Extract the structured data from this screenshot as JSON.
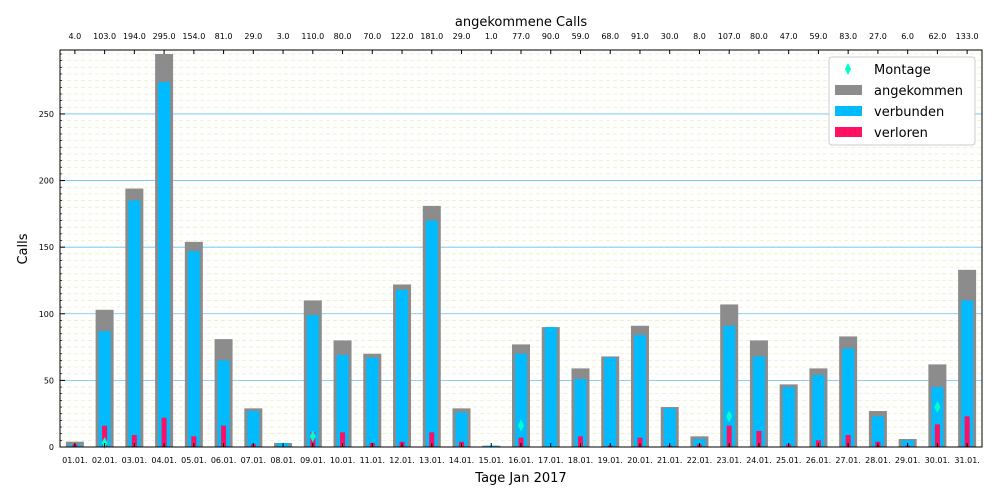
{
  "chart_data": {
    "type": "bar",
    "title": "angekommene Calls",
    "xlabel": "Tage Jan 2017",
    "ylabel": "Calls",
    "ylim": [
      0,
      298
    ],
    "yticks": [
      0,
      50,
      100,
      150,
      200,
      250
    ],
    "grid": true,
    "legend_position": "top-right",
    "categories": [
      "01.01.",
      "02.01.",
      "03.01.",
      "04.01.",
      "05.01.",
      "06.01.",
      "07.01.",
      "08.01.",
      "09.01.",
      "10.01.",
      "11.01.",
      "12.01.",
      "13.01.",
      "14.01.",
      "15.01.",
      "16.01.",
      "17.01.",
      "18.01.",
      "19.01.",
      "20.01.",
      "21.01.",
      "22.01.",
      "23.01.",
      "24.01.",
      "25.01.",
      "26.01.",
      "27.01.",
      "28.01.",
      "29.01.",
      "30.01.",
      "31.01."
    ],
    "top_labels": [
      "4.0",
      "103.0",
      "194.0",
      "295.0",
      "154.0",
      "81.0",
      "29.0",
      "3.0",
      "110.0",
      "80.0",
      "70.0",
      "122.0",
      "181.0",
      "29.0",
      "1.0",
      "77.0",
      "90.0",
      "59.0",
      "68.0",
      "91.0",
      "30.0",
      "8.0",
      "107.0",
      "80.0",
      "47.0",
      "59.0",
      "83.0",
      "27.0",
      "6.0",
      "62.0",
      "133.0"
    ],
    "series": [
      {
        "name": "Montage",
        "kind": "marker",
        "color": "#00ffcc",
        "points": [
          {
            "index": 1,
            "value": 3
          },
          {
            "index": 8,
            "value": 8
          },
          {
            "index": 15,
            "value": 16
          },
          {
            "index": 22,
            "value": 23
          },
          {
            "index": 29,
            "value": 30
          }
        ]
      },
      {
        "name": "angekommen",
        "kind": "bar",
        "color": "#8c8c8c",
        "values": [
          4,
          103,
          194,
          295,
          154,
          81,
          29,
          3,
          110,
          80,
          70,
          122,
          181,
          29,
          1,
          77,
          90,
          59,
          68,
          91,
          30,
          8,
          107,
          80,
          47,
          59,
          83,
          27,
          6,
          62,
          133
        ]
      },
      {
        "name": "verbunden",
        "kind": "bar",
        "color": "#00bbff",
        "values": [
          2,
          87,
          185,
          274,
          147,
          65,
          27,
          3,
          99,
          69,
          67,
          118,
          170,
          26,
          1,
          70,
          90,
          51,
          67,
          84,
          29,
          6,
          91,
          68,
          45,
          54,
          74,
          23,
          5,
          45,
          110
        ]
      },
      {
        "name": "verloren",
        "kind": "bar",
        "color": "#ff1060",
        "values": [
          2,
          16,
          9,
          22,
          8,
          16,
          2,
          0,
          11,
          11,
          3,
          4,
          11,
          4,
          0,
          7,
          0,
          8,
          1,
          7,
          1,
          2,
          16,
          12,
          2,
          5,
          9,
          4,
          1,
          17,
          23
        ]
      }
    ]
  }
}
